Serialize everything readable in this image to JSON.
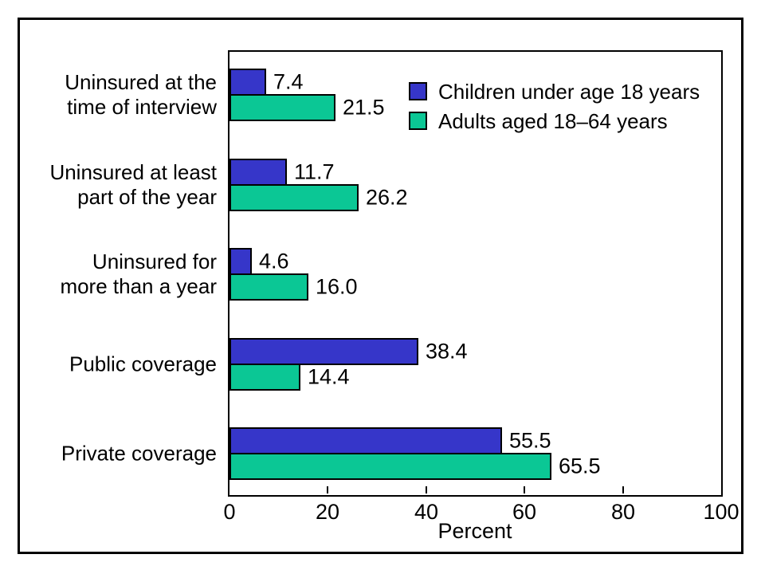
{
  "figure": {
    "background_color": "#ffffff",
    "frame_color": "#000000",
    "bar_outline_color": "#000000",
    "text_color": "#000000"
  },
  "chart_data": {
    "type": "bar",
    "orientation": "horizontal",
    "title": "",
    "xlabel": "Percent",
    "ylabel": "",
    "xlim": [
      0,
      100
    ],
    "xticks": [
      "0",
      "20",
      "40",
      "60",
      "80",
      "100"
    ],
    "xtick_values": [
      0,
      20,
      40,
      60,
      80,
      100
    ],
    "grid": false,
    "legend_position": "top-right-inside",
    "categories": [
      "Uninsured at the time of interview",
      "Uninsured at least part of the year",
      "Uninsured for more than a year",
      "Public coverage",
      "Private coverage"
    ],
    "categories_wrapped": [
      [
        "Uninsured at the",
        "time of interview"
      ],
      [
        "Uninsured at least",
        "part of the year"
      ],
      [
        "Uninsured for",
        "more than a year"
      ],
      [
        "Public coverage"
      ],
      [
        "Private coverage"
      ]
    ],
    "series": [
      {
        "name": "Children under age 18 years",
        "color": "#3636c9",
        "values": [
          7.4,
          11.7,
          4.6,
          38.4,
          55.5
        ],
        "value_labels": [
          "7.4",
          "11.7",
          "4.6",
          "38.4",
          "55.5"
        ]
      },
      {
        "name": "Adults aged 18–64 years",
        "color": "#0bc795",
        "values": [
          21.5,
          26.2,
          16.0,
          14.4,
          65.5
        ],
        "value_labels": [
          "21.5",
          "26.2",
          "16.0",
          "14.4",
          "65.5"
        ]
      }
    ]
  }
}
